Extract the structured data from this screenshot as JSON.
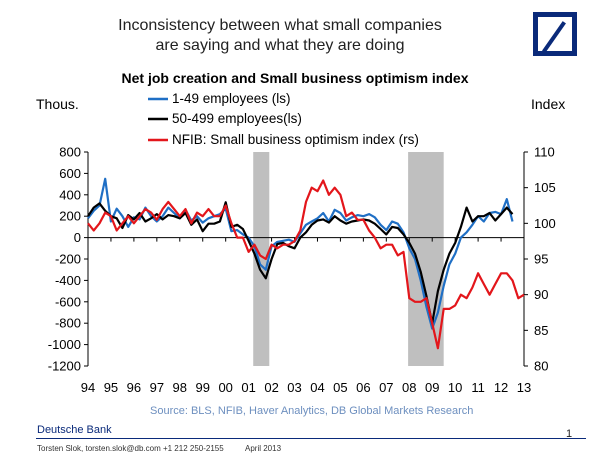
{
  "header": {
    "title_line1": "Inconsistency between what small companies",
    "title_line2": "are saying and what they are doing",
    "logo": "deutsche-bank-logo"
  },
  "chart_data": {
    "type": "line",
    "title": "Net job creation and Small business optimism index",
    "ylabel_left": "Thous.",
    "ylabel_right": "Index",
    "ylim_left": [
      -1200,
      800
    ],
    "ylim_right": [
      80,
      110
    ],
    "yticks_left": [
      "800",
      "600",
      "400",
      "200",
      "0",
      "-200",
      "-400",
      "-600",
      "-800",
      "-1000",
      "-1200"
    ],
    "yticks_right": [
      "110",
      "105",
      "100",
      "95",
      "90",
      "85",
      "80"
    ],
    "x_tick_labels": [
      "94",
      "95",
      "96",
      "97",
      "98",
      "99",
      "00",
      "01",
      "02",
      "03",
      "04",
      "05",
      "06",
      "07",
      "08",
      "09",
      "10",
      "11",
      "12",
      "13"
    ],
    "xlim": [
      1994,
      2013
    ],
    "recessions": [
      [
        2001.2,
        2001.9
      ],
      [
        2007.95,
        2009.5
      ]
    ],
    "legend": [
      "1-49 employees (ls)",
      "50-499 employees(ls)",
      "NFIB: Small business optimism index (rs)"
    ],
    "colors": {
      "small": "#1f6fc5",
      "mid": "#000000",
      "nfib": "#e3161b",
      "recession": "#bfbfbf"
    },
    "series": [
      {
        "name": "1-49 employees (ls)",
        "axis": "left",
        "x": [
          1994,
          1994.25,
          1994.5,
          1994.75,
          1995,
          1995.25,
          1995.5,
          1995.75,
          1996,
          1996.25,
          1996.5,
          1996.75,
          1997,
          1997.25,
          1997.5,
          1997.75,
          1998,
          1998.25,
          1998.5,
          1998.75,
          1999,
          1999.25,
          1999.5,
          1999.75,
          2000,
          2000.25,
          2000.5,
          2000.75,
          2001,
          2001.25,
          2001.5,
          2001.75,
          2002,
          2002.25,
          2002.5,
          2002.75,
          2003,
          2003.25,
          2003.5,
          2003.75,
          2004,
          2004.25,
          2004.5,
          2004.75,
          2005,
          2005.25,
          2005.5,
          2005.75,
          2006,
          2006.25,
          2006.5,
          2006.75,
          2007,
          2007.25,
          2007.5,
          2007.75,
          2008,
          2008.25,
          2008.5,
          2008.75,
          2009,
          2009.25,
          2009.5,
          2009.75,
          2010,
          2010.25,
          2010.5,
          2010.75,
          2011,
          2011.25,
          2011.5,
          2011.75,
          2012,
          2012.25,
          2012.5
        ],
        "values": [
          180,
          250,
          300,
          550,
          150,
          270,
          200,
          100,
          190,
          170,
          280,
          200,
          150,
          200,
          280,
          230,
          180,
          260,
          160,
          200,
          140,
          180,
          200,
          220,
          270,
          60,
          70,
          30,
          0,
          -80,
          -250,
          -300,
          -80,
          -40,
          -30,
          -20,
          -40,
          40,
          120,
          150,
          180,
          230,
          150,
          260,
          230,
          160,
          190,
          210,
          200,
          220,
          190,
          120,
          70,
          150,
          130,
          50,
          -100,
          -200,
          -400,
          -650,
          -850,
          -700,
          -450,
          -250,
          -150,
          0,
          50,
          120,
          200,
          150,
          230,
          240,
          220,
          360,
          150
        ]
      },
      {
        "name": "50-499 employees(ls)",
        "axis": "left",
        "x": [
          1994,
          1994.25,
          1994.5,
          1994.75,
          1995,
          1995.25,
          1995.5,
          1995.75,
          1996,
          1996.25,
          1996.5,
          1996.75,
          1997,
          1997.25,
          1997.5,
          1997.75,
          1998,
          1998.25,
          1998.5,
          1998.75,
          1999,
          1999.25,
          1999.5,
          1999.75,
          2000,
          2000.25,
          2000.5,
          2000.75,
          2001,
          2001.25,
          2001.5,
          2001.75,
          2002,
          2002.25,
          2002.5,
          2002.75,
          2003,
          2003.25,
          2003.5,
          2003.75,
          2004,
          2004.25,
          2004.5,
          2004.75,
          2005,
          2005.25,
          2005.5,
          2005.75,
          2006,
          2006.25,
          2006.5,
          2006.75,
          2007,
          2007.25,
          2007.5,
          2007.75,
          2008,
          2008.25,
          2008.5,
          2008.75,
          2009,
          2009.25,
          2009.5,
          2009.75,
          2010,
          2010.25,
          2010.5,
          2010.75,
          2011,
          2011.25,
          2011.5,
          2011.75,
          2012,
          2012.25,
          2012.5
        ],
        "values": [
          200,
          280,
          320,
          250,
          200,
          180,
          90,
          210,
          170,
          230,
          150,
          180,
          220,
          170,
          210,
          200,
          180,
          230,
          120,
          170,
          60,
          130,
          130,
          150,
          330,
          100,
          120,
          80,
          -30,
          -150,
          -300,
          -380,
          -200,
          -60,
          -50,
          -80,
          -100,
          0,
          50,
          120,
          160,
          170,
          140,
          200,
          160,
          130,
          150,
          160,
          170,
          160,
          130,
          80,
          30,
          100,
          90,
          30,
          -50,
          -150,
          -320,
          -550,
          -800,
          -500,
          -300,
          -150,
          -50,
          100,
          280,
          150,
          200,
          200,
          230,
          160,
          220,
          280,
          220
        ]
      },
      {
        "name": "NFIB: Small business optimism index (rs)",
        "axis": "right",
        "x": [
          1994,
          1994.25,
          1994.5,
          1994.75,
          1995,
          1995.25,
          1995.5,
          1995.75,
          1996,
          1996.25,
          1996.5,
          1996.75,
          1997,
          1997.25,
          1997.5,
          1997.75,
          1998,
          1998.25,
          1998.5,
          1998.75,
          1999,
          1999.25,
          1999.5,
          1999.75,
          2000,
          2000.25,
          2000.5,
          2000.75,
          2001,
          2001.25,
          2001.5,
          2001.75,
          2002,
          2002.25,
          2002.5,
          2002.75,
          2003,
          2003.25,
          2003.5,
          2003.75,
          2004,
          2004.25,
          2004.5,
          2004.75,
          2005,
          2005.25,
          2005.5,
          2005.75,
          2006,
          2006.25,
          2006.5,
          2006.75,
          2007,
          2007.25,
          2007.5,
          2007.75,
          2008,
          2008.25,
          2008.5,
          2008.75,
          2009,
          2009.25,
          2009.5,
          2009.75,
          2010,
          2010.25,
          2010.5,
          2010.75,
          2011,
          2011.25,
          2011.5,
          2011.75,
          2012,
          2012.25,
          2012.5,
          2012.75,
          2013
        ],
        "values": [
          100,
          99,
          100,
          101.5,
          101,
          99,
          100,
          101,
          100,
          101,
          102,
          101.5,
          100.5,
          102,
          103,
          102,
          101,
          102,
          100,
          101.5,
          101,
          102,
          101,
          101,
          102.5,
          100,
          98,
          98,
          96,
          97,
          95.5,
          95,
          97,
          96.5,
          97,
          97,
          97.5,
          99,
          103,
          105,
          104.5,
          106,
          104,
          105,
          104,
          101,
          101.5,
          100.5,
          100.5,
          99,
          98,
          96.5,
          97,
          97,
          95.5,
          96,
          89.5,
          89,
          89,
          89.5,
          86,
          82.5,
          88,
          88,
          88.5,
          90,
          89.5,
          91,
          93,
          91.5,
          90,
          91.5,
          93,
          93,
          92,
          89.5,
          90
        ]
      }
    ]
  },
  "source": "Source:  BLS, NFIB, Haver Analytics, DB Global Markets Research",
  "footer": {
    "brand": "Deutsche Bank",
    "author": "Torsten Slok, torsten.slok@db.com +1 212 250-2155",
    "date": "April 2013",
    "page": "1"
  }
}
